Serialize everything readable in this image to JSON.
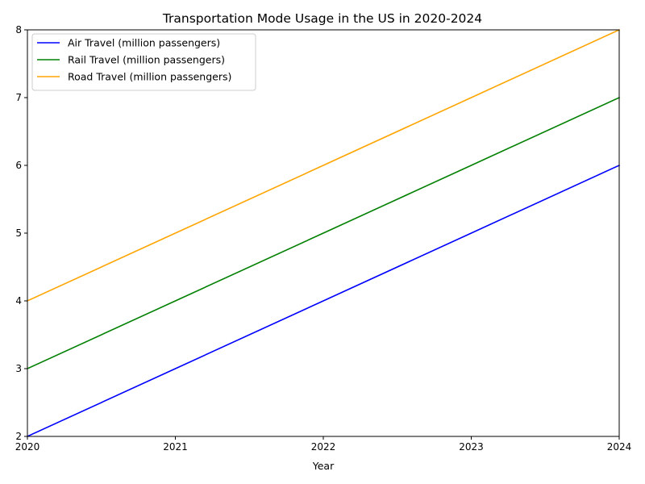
{
  "chart_data": {
    "type": "line",
    "title": "Transportation Mode Usage in the US in 2020-2024",
    "xlabel": "Year",
    "ylabel": "",
    "x": [
      2020,
      2021,
      2022,
      2023,
      2024
    ],
    "xticks": [
      "2020",
      "2021",
      "2022",
      "2023",
      "2024"
    ],
    "yticks": [
      "2",
      "3",
      "4",
      "5",
      "6",
      "7",
      "8"
    ],
    "xlim": [
      2020,
      2024
    ],
    "ylim": [
      2,
      8
    ],
    "grid": false,
    "legend_position": "top-left",
    "series": [
      {
        "name": "Air Travel (million passengers)",
        "color": "#0000ff",
        "values": [
          2,
          3,
          4,
          5,
          6
        ]
      },
      {
        "name": "Rail Travel (million passengers)",
        "color": "#008000",
        "values": [
          3,
          4,
          5,
          6,
          7
        ]
      },
      {
        "name": "Road Travel (million passengers)",
        "color": "#ffa500",
        "values": [
          4,
          5,
          6,
          7,
          8
        ]
      }
    ]
  }
}
